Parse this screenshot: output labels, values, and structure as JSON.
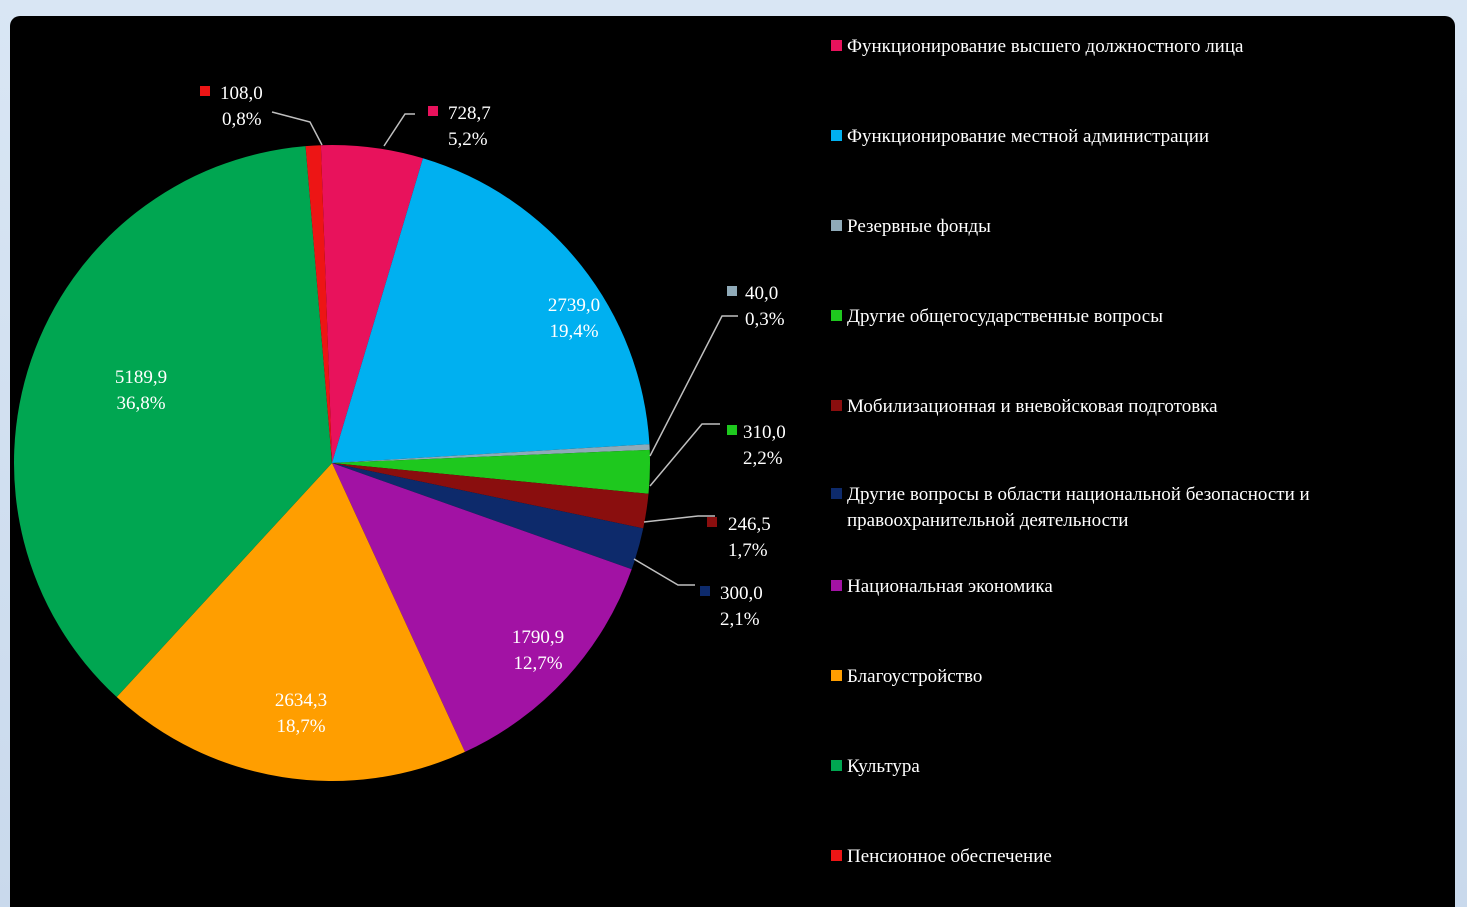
{
  "chart_data": {
    "type": "pie",
    "title": "",
    "slices": [
      {
        "name": "Функционирование  высшего должностного лица",
        "value": 728.7,
        "value_label": "728,7",
        "percent_label": "5,2%",
        "color": "#e8125c"
      },
      {
        "name": "Функционирование  местной администрации",
        "value": 2739.0,
        "value_label": "2739,0",
        "percent_label": "19,4%",
        "color": "#00b0f0"
      },
      {
        "name": "Резервные фонды",
        "value": 40.0,
        "value_label": "40,0",
        "percent_label": "0,3%",
        "color": "#8faab8"
      },
      {
        "name": "Другие общегосударственные  вопросы",
        "value": 310.0,
        "value_label": "310,0",
        "percent_label": "2,2%",
        "color": "#1ec81e"
      },
      {
        "name": "Мобилизационная  и вневойсковая подготовка",
        "value": 246.5,
        "value_label": "246,5",
        "percent_label": "1,7%",
        "color": "#8a0e0e"
      },
      {
        "name": "Другие вопросы в области национальной  безопасности и правоохранительной  деятельности",
        "value": 300.0,
        "value_label": "300,0",
        "percent_label": "2,1%",
        "color": "#0d2a6b"
      },
      {
        "name": "Национальная  экономика",
        "value": 1790.9,
        "value_label": "1790,9",
        "percent_label": "12,7%",
        "color": "#a212a4"
      },
      {
        "name": "Благоустройство",
        "value": 2634.3,
        "value_label": "2634,3",
        "percent_label": "18,7%",
        "color": "#ff9e00"
      },
      {
        "name": "Культура",
        "value": 5189.9,
        "value_label": "5189,9",
        "percent_label": "36,8%",
        "color": "#00a651"
      },
      {
        "name": "Пенсионное  обеспечение",
        "value": 108.0,
        "value_label": "108,0",
        "percent_label": "0,8%",
        "color": "#ed1515"
      }
    ],
    "legend_position": "right"
  }
}
